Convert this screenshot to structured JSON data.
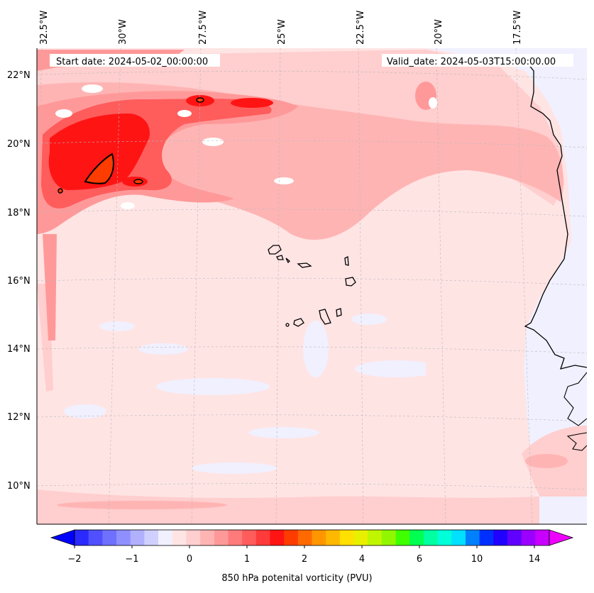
{
  "header": {
    "start_date": "Start date: 2024-05-02_00:00:00",
    "valid_date": "Valid_date: 2024-05-03T15:00:00.00"
  },
  "map": {
    "lon_labels": [
      "32.5°W",
      "30°W",
      "27.5°W",
      "25°W",
      "22.5°W",
      "20°W",
      "17.5°W"
    ],
    "lat_labels": [
      "22°N",
      "20°N",
      "18°N",
      "16°N",
      "14°N",
      "12°N",
      "10°N"
    ],
    "colors": {
      "background_field": "#ffe4e4",
      "land_field": "#f0f0ff",
      "coast": "#000000",
      "grid": "#b8b8b8"
    }
  },
  "colorbar": {
    "label": "850 hPa potenital vorticity (PVU)",
    "tick_labels": [
      "−2",
      "−1",
      "0",
      "1",
      "2",
      "4",
      "6",
      "10",
      "14"
    ],
    "colors": [
      "#0000ff",
      "#2a2aff",
      "#5050ff",
      "#7070ff",
      "#8f8fff",
      "#b0b0ff",
      "#d0d0ff",
      "#f0f0ff",
      "#ffe4e4",
      "#ffcece",
      "#ffb4b4",
      "#ff9999",
      "#ff7a7a",
      "#ff5c5c",
      "#ff3a3a",
      "#ff1414",
      "#ff3c00",
      "#ff6a00",
      "#ff9600",
      "#ffb800",
      "#ffe000",
      "#e8f000",
      "#c0f500",
      "#90f700",
      "#40ff00",
      "#00ff50",
      "#00ffa0",
      "#00ffd8",
      "#00e0ff",
      "#0080ff",
      "#0030ff",
      "#2000ff",
      "#6000ff",
      "#9a00ff",
      "#c800ff",
      "#ee00ff"
    ]
  }
}
